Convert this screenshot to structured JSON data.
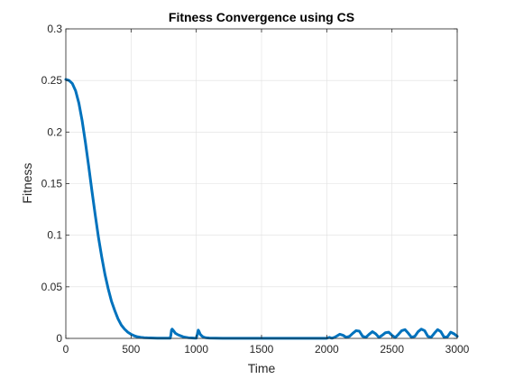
{
  "chart_data": {
    "type": "line",
    "title": "Fitness Convergence using CS",
    "xlabel": "Time",
    "ylabel": "Fitness",
    "xlim": [
      0,
      3000
    ],
    "ylim": [
      0,
      0.3
    ],
    "xticks": [
      "0",
      "500",
      "1000",
      "1500",
      "2000",
      "2500",
      "3000"
    ],
    "yticks": [
      "0",
      "0.05",
      "0.1",
      "0.15",
      "0.2",
      "0.25",
      "0.3"
    ],
    "grid": true,
    "series": [
      {
        "color": "#0072BD",
        "x": [
          0,
          25,
          50,
          75,
          100,
          125,
          150,
          175,
          200,
          225,
          250,
          275,
          300,
          325,
          350,
          375,
          400,
          425,
          450,
          475,
          500,
          525,
          550,
          575,
          600,
          625,
          650,
          675,
          700,
          725,
          750,
          775,
          800,
          805,
          810,
          815,
          825,
          840,
          860,
          880,
          900,
          940,
          980,
          1000,
          1010,
          1015,
          1020,
          1030,
          1045,
          1060,
          1080,
          1100,
          1200,
          1300,
          1400,
          1500,
          1600,
          1700,
          1800,
          1900,
          2000,
          2020,
          2030,
          2040,
          2060,
          2080,
          2100,
          2125,
          2150,
          2175,
          2200,
          2225,
          2250,
          2275,
          2300,
          2325,
          2350,
          2375,
          2400,
          2425,
          2450,
          2475,
          2500,
          2525,
          2550,
          2575,
          2600,
          2625,
          2650,
          2675,
          2700,
          2725,
          2750,
          2775,
          2800,
          2825,
          2850,
          2875,
          2900,
          2925,
          2950,
          2975,
          3000
        ],
        "values": [
          0.251,
          0.25,
          0.247,
          0.24,
          0.228,
          0.211,
          0.19,
          0.167,
          0.143,
          0.12,
          0.098,
          0.079,
          0.062,
          0.048,
          0.036,
          0.027,
          0.019,
          0.013,
          0.009,
          0.006,
          0.004,
          0.0025,
          0.0015,
          0.001,
          0.0007,
          0.0005,
          0.0004,
          0.0003,
          0.0002,
          0.0002,
          0.0002,
          0.0002,
          0.0002,
          0.003,
          0.008,
          0.009,
          0.0075,
          0.005,
          0.0035,
          0.0025,
          0.0015,
          0.0006,
          0.0003,
          0.0002,
          0.005,
          0.008,
          0.007,
          0.004,
          0.002,
          0.001,
          0.0005,
          0.0003,
          0.0001,
          0.0001,
          0.0001,
          0.0001,
          0.0001,
          0.0001,
          0.0001,
          0.0001,
          0.0001,
          0.001,
          0.0005,
          0.0002,
          0.001,
          0.0025,
          0.004,
          0.003,
          0.001,
          0.002,
          0.005,
          0.0075,
          0.007,
          0.002,
          0.001,
          0.004,
          0.0065,
          0.0045,
          0.001,
          0.003,
          0.0055,
          0.006,
          0.003,
          0.0008,
          0.004,
          0.0075,
          0.0085,
          0.005,
          0.001,
          0.002,
          0.0065,
          0.009,
          0.0075,
          0.002,
          0.001,
          0.005,
          0.0085,
          0.0065,
          0.001,
          0.0015,
          0.006,
          0.0045,
          0.002
        ]
      }
    ]
  }
}
